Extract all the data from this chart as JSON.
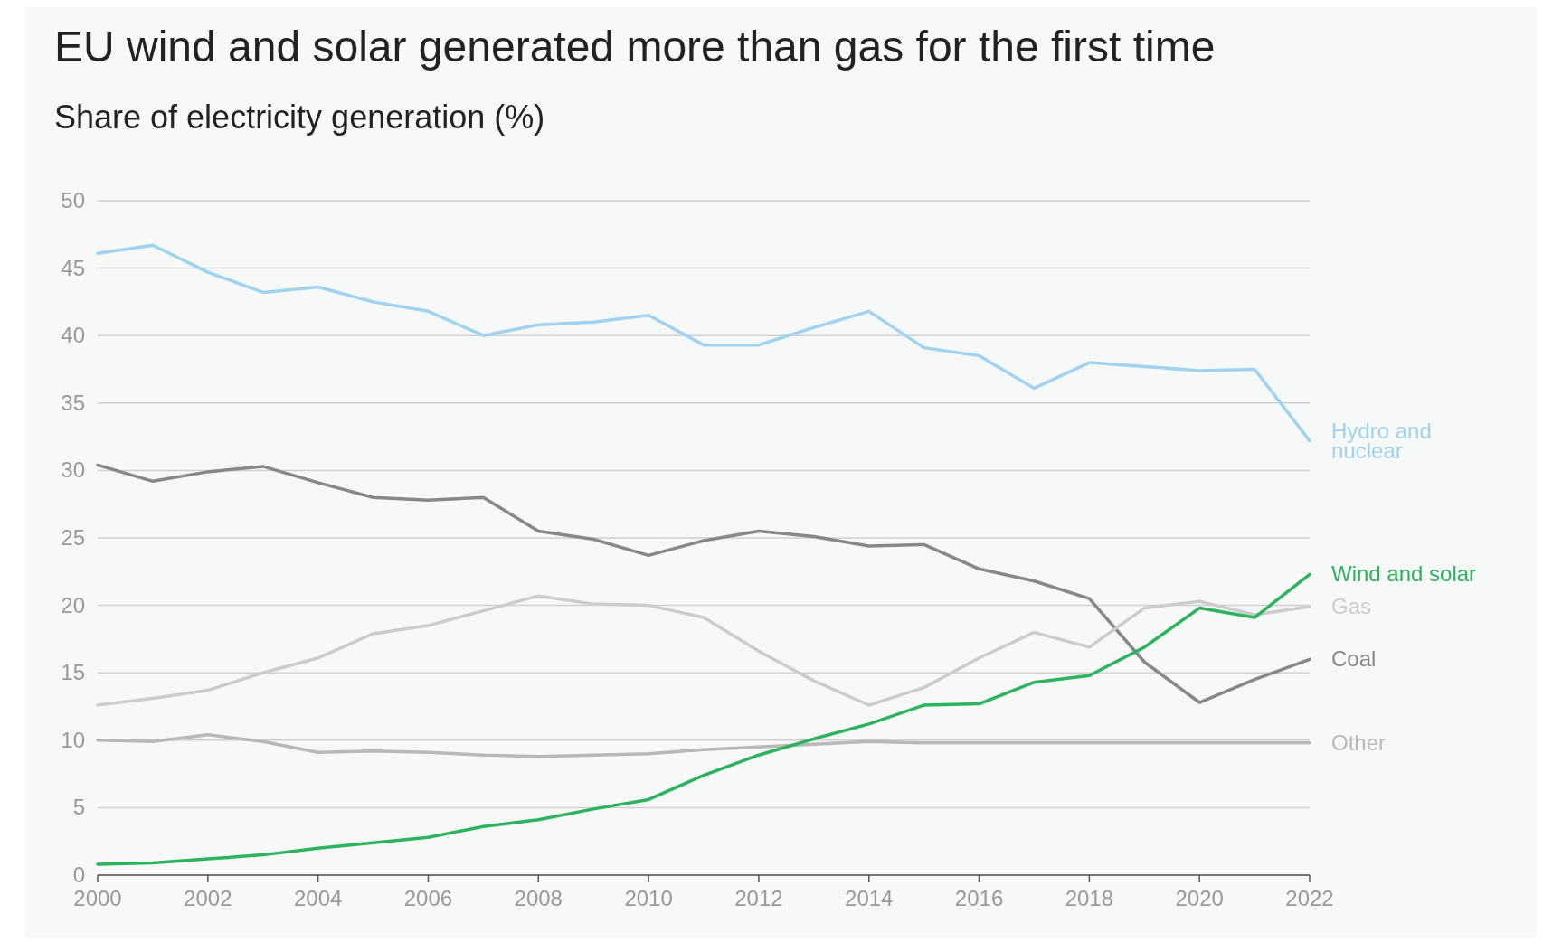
{
  "chart_data": {
    "type": "line",
    "title": "EU wind and solar generated more than gas for the first time",
    "subtitle": "Share of electricity generation (%)",
    "x": [
      2000,
      2001,
      2002,
      2003,
      2004,
      2005,
      2006,
      2007,
      2008,
      2009,
      2010,
      2011,
      2012,
      2013,
      2014,
      2015,
      2016,
      2017,
      2018,
      2019,
      2020,
      2021,
      2022
    ],
    "series": [
      {
        "name": "Hydro and nuclear",
        "color": "#9fd3f0",
        "values": [
          46.1,
          46.7,
          44.7,
          43.2,
          43.6,
          42.5,
          41.8,
          40.0,
          40.8,
          41.0,
          41.5,
          39.3,
          39.3,
          40.6,
          41.8,
          39.1,
          38.5,
          36.1,
          38.0,
          37.7,
          37.4,
          37.5,
          32.2
        ]
      },
      {
        "name": "Coal",
        "color": "#888888",
        "values": [
          30.4,
          29.2,
          29.9,
          30.3,
          29.1,
          28.0,
          27.8,
          28.0,
          25.5,
          24.9,
          23.7,
          24.8,
          25.5,
          25.1,
          24.4,
          24.5,
          22.7,
          21.8,
          20.5,
          15.8,
          12.8,
          14.5,
          16.0
        ]
      },
      {
        "name": "Gas",
        "color": "#cccccc",
        "values": [
          12.6,
          13.1,
          13.7,
          15.0,
          16.1,
          17.9,
          18.5,
          19.6,
          20.7,
          20.1,
          20.0,
          19.1,
          16.6,
          14.4,
          12.6,
          13.9,
          16.1,
          18.0,
          16.9,
          19.8,
          20.3,
          19.3,
          19.9
        ]
      },
      {
        "name": "Other",
        "color": "#b8b8b8",
        "values": [
          10.0,
          9.9,
          10.4,
          9.9,
          9.1,
          9.2,
          9.1,
          8.9,
          8.8,
          8.9,
          9.0,
          9.3,
          9.5,
          9.7,
          9.9,
          9.8,
          9.8,
          9.8,
          9.8,
          9.8,
          9.8,
          9.8,
          9.8
        ]
      },
      {
        "name": "Wind and solar",
        "color": "#2db35d",
        "values": [
          0.8,
          0.9,
          1.2,
          1.5,
          2.0,
          2.4,
          2.8,
          3.6,
          4.1,
          4.9,
          5.6,
          7.4,
          8.9,
          10.1,
          11.2,
          12.6,
          12.7,
          14.3,
          14.8,
          16.9,
          19.8,
          19.1,
          22.3
        ]
      }
    ],
    "xlim": [
      2000,
      2022
    ],
    "xticks": [
      2000,
      2002,
      2004,
      2006,
      2008,
      2010,
      2012,
      2014,
      2016,
      2018,
      2020,
      2022
    ],
    "ylim": [
      0,
      50
    ],
    "yticks": [
      0,
      5,
      10,
      15,
      20,
      25,
      30,
      35,
      40,
      45,
      50
    ],
    "grid": "y",
    "legend": false,
    "marker": "none",
    "line_style": "solid"
  }
}
